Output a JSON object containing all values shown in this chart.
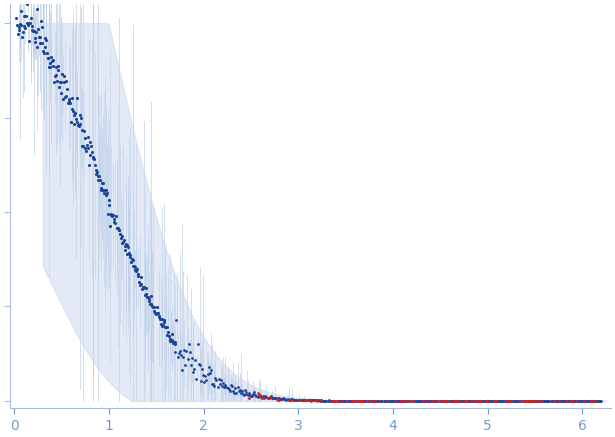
{
  "xlim": [
    -0.05,
    6.3
  ],
  "xticks": [
    0,
    1,
    2,
    3,
    4,
    5,
    6
  ],
  "background_color": "#ffffff",
  "axis_color": "#aabbdd",
  "tick_color": "#7799cc",
  "blue_dot_color": "#1a4499",
  "red_dot_color": "#cc2222",
  "error_band_color": "#ccd8ee",
  "error_line_color": "#aac4e0",
  "dot_size_low": 5,
  "dot_size_high": 4,
  "seed": 12345,
  "figsize": [
    6.15,
    4.37
  ],
  "dpi": 100
}
